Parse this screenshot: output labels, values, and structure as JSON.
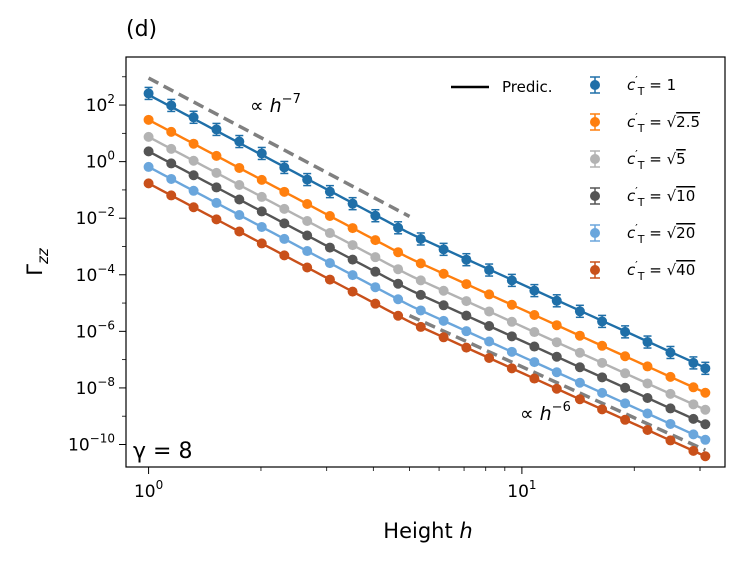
{
  "panel_label": "(d)",
  "chart_data": {
    "type": "scatter",
    "title": "",
    "xlabel": "Height h",
    "ylabel": "Γzz",
    "xscale": "log",
    "yscale": "log",
    "xlim": [
      0.87,
      35
    ],
    "ylim": [
      1.6e-11,
      5000
    ],
    "x_ticks": [
      {
        "value": 1,
        "label": "10^0"
      },
      {
        "value": 10,
        "label": "10^1"
      }
    ],
    "y_ticks": [
      {
        "value": 100.0,
        "label": "10^2"
      },
      {
        "value": 1.0,
        "label": "10^0"
      },
      {
        "value": 0.01,
        "label": "10^-2"
      },
      {
        "value": 0.0001,
        "label": "10^-4"
      },
      {
        "value": 1e-06,
        "label": "10^-6"
      },
      {
        "value": 1e-08,
        "label": "10^-8"
      },
      {
        "value": 1e-10,
        "label": "10^-10"
      }
    ],
    "grid": false,
    "legend_position": "top-right",
    "legend_prediction_label": "Predic.",
    "x": [
      1.0,
      1.15,
      1.32,
      1.52,
      1.75,
      2.01,
      2.31,
      2.66,
      3.06,
      3.52,
      4.05,
      4.66,
      5.36,
      6.17,
      7.1,
      8.17,
      9.4,
      10.8,
      12.4,
      14.3,
      16.4,
      18.9,
      21.7,
      25.0,
      28.8,
      31.0
    ],
    "series": [
      {
        "name": "c'T = 1",
        "label_value": "1",
        "color": "#1f6fa8",
        "prediction_at_1": 230,
        "slope_low_h": -7,
        "crossover_h": 5.0,
        "slope_high_h": -6,
        "data_factor": 0.95
      },
      {
        "name": "c'T = √2.5",
        "label_value": "2.5",
        "color": "#ff7f0e",
        "prediction_at_1": 30,
        "slope_low_h": -7,
        "crossover_h": 5.0,
        "slope_high_h": -6,
        "data_factor": 1.0
      },
      {
        "name": "c'T = √5",
        "label_value": "5",
        "color": "#b3b3b3",
        "prediction_at_1": 7.5,
        "slope_low_h": -7,
        "crossover_h": 5.0,
        "slope_high_h": -6,
        "data_factor": 1.0
      },
      {
        "name": "c'T = √10",
        "label_value": "10",
        "color": "#555555",
        "prediction_at_1": 2.3,
        "slope_low_h": -7,
        "crossover_h": 5.0,
        "slope_high_h": -6,
        "data_factor": 1.0
      },
      {
        "name": "c'T = √20",
        "label_value": "20",
        "color": "#6aa6dc",
        "prediction_at_1": 0.65,
        "slope_low_h": -7,
        "crossover_h": 5.0,
        "slope_high_h": -6,
        "data_factor": 1.0
      },
      {
        "name": "c'T = √40",
        "label_value": "40",
        "color": "#c9501a",
        "prediction_at_1": 0.17,
        "slope_low_h": -7,
        "crossover_h": 5.0,
        "slope_high_h": -6,
        "data_factor": 1.0
      }
    ],
    "reference_lines": [
      {
        "label": "∝ h^−7",
        "label_base": "∝ h",
        "exponent": "−7",
        "x_start": 1.0,
        "x_end": 5.0,
        "y_at_start": 900,
        "slope": -7,
        "color": "#808080"
      },
      {
        "label": "∝ h^−6",
        "label_base": "∝ h",
        "exponent": "−6",
        "x_start": 5.0,
        "x_end": 31.0,
        "y_at_start": 3.6e-06,
        "slope": -6,
        "color": "#808080"
      }
    ],
    "annotations": [
      {
        "text": "γ = 8",
        "position": "bottom-left"
      }
    ]
  }
}
